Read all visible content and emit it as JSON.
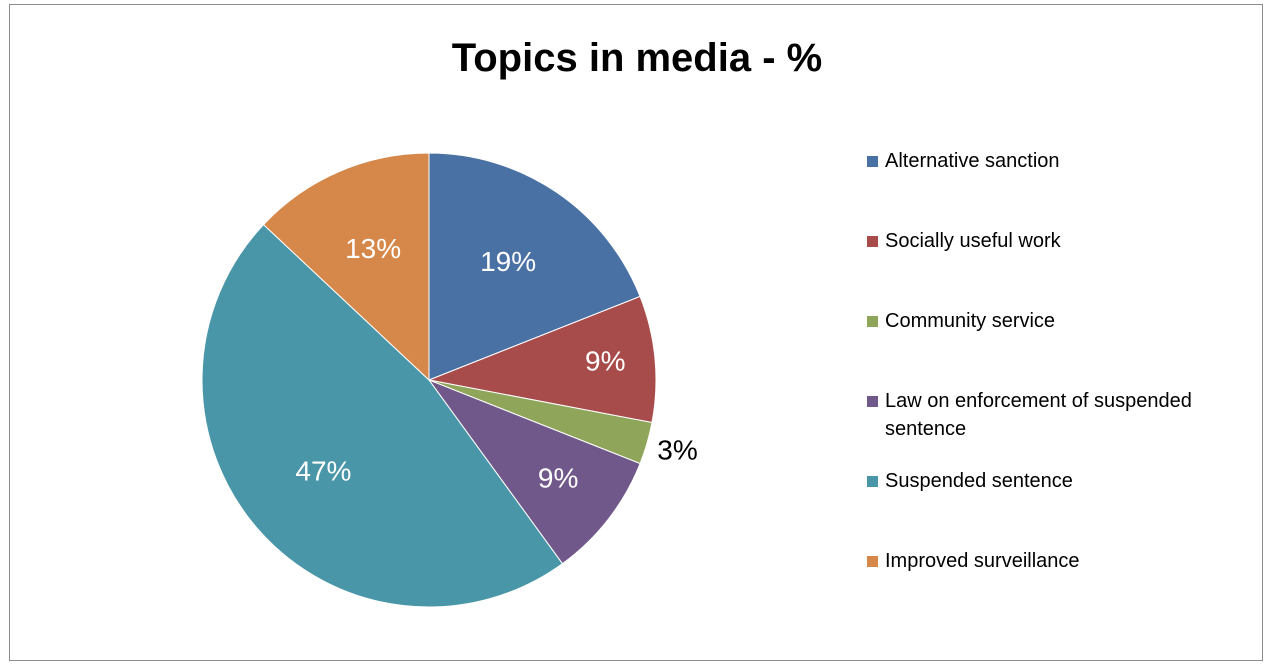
{
  "chart_data": {
    "type": "pie",
    "title": "Topics in media - %",
    "legend_position": "right",
    "slices": [
      {
        "label": "Alternative sanction",
        "value": 19,
        "data_label": "19%",
        "color": "#4A71A4"
      },
      {
        "label": "Socially useful work",
        "value": 9,
        "data_label": "9%",
        "color": "#A84C4B"
      },
      {
        "label": "Community service",
        "value": 3,
        "data_label": "3%",
        "color": "#8EA55A"
      },
      {
        "label": "Law on enforcement of suspended sentence",
        "value": 9,
        "data_label": "9%",
        "color": "#70598A"
      },
      {
        "label": "Suspended sentence",
        "value": 47,
        "data_label": "47%",
        "color": "#4896A8"
      },
      {
        "label": "Improved surveillance",
        "value": 13,
        "data_label": "13%",
        "color": "#D6874A"
      }
    ]
  }
}
